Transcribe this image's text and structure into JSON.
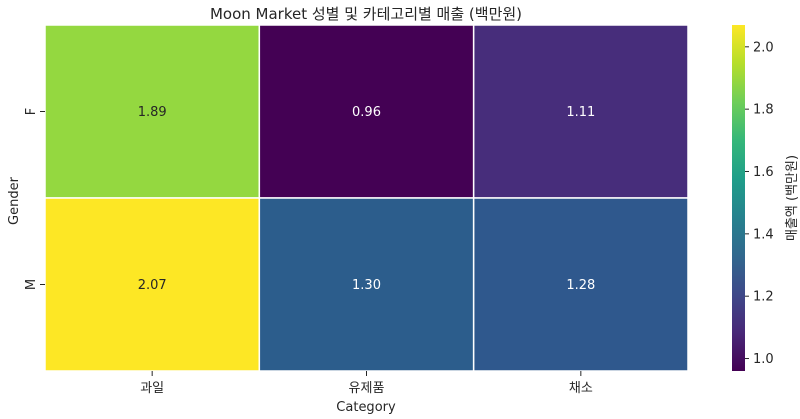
{
  "chart_data": {
    "type": "heatmap",
    "title": "Moon Market 성별 및 카테고리별 매출 (백만원)",
    "xlabel": "Category",
    "ylabel": "Gender",
    "x_categories": [
      "과일",
      "유제품",
      "채소"
    ],
    "y_categories": [
      "F",
      "M"
    ],
    "values": [
      [
        1.89,
        0.96,
        1.11
      ],
      [
        2.07,
        1.3,
        1.28
      ]
    ],
    "cell_labels": [
      [
        "1.89",
        "0.96",
        "1.11"
      ],
      [
        "2.07",
        "1.30",
        "1.28"
      ]
    ],
    "colormap": "viridis",
    "colorbar": {
      "label": "매출액 (백만원)",
      "range": [
        0.96,
        2.07
      ],
      "ticks": [
        1.0,
        1.2,
        1.4,
        1.6,
        1.8,
        2.0
      ],
      "tick_labels": [
        "1.0",
        "1.2",
        "1.4",
        "1.6",
        "1.8",
        "2.0"
      ]
    },
    "cell_colors": [
      [
        "#94d840",
        "#440154",
        "#472d7b"
      ],
      [
        "#fde725",
        "#2c5d8c",
        "#2f588d"
      ]
    ]
  }
}
